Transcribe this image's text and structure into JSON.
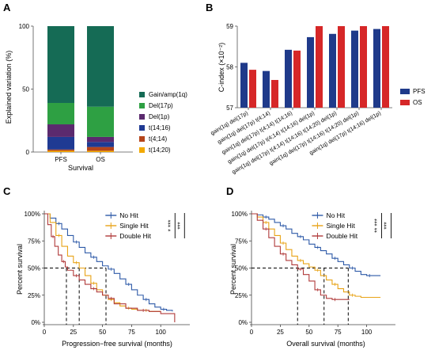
{
  "panels": {
    "A": {
      "label": "A",
      "chart_data": {
        "type": "stacked-bar",
        "categories": [
          "PFS",
          "OS"
        ],
        "ylabel": "Explained variation (%)",
        "xlabel": "Survival",
        "ylim": [
          0,
          100
        ],
        "yticks": [
          0,
          50,
          100
        ],
        "series": [
          {
            "name": "t(14;20)",
            "color": "#F2A900",
            "values": [
              1,
              1
            ]
          },
          {
            "name": "t(4;14)",
            "color": "#B5451B",
            "values": [
              1,
              3
            ]
          },
          {
            "name": "t(14;16)",
            "color": "#1F3A93",
            "values": [
              10,
              4
            ]
          },
          {
            "name": "Del(1p)",
            "color": "#5B2A6E",
            "values": [
              10,
              4
            ]
          },
          {
            "name": "Del(17p)",
            "color": "#2EA043",
            "values": [
              17,
              24
            ]
          },
          {
            "name": "Gain/amp(1q)",
            "color": "#156B55",
            "values": [
              61,
              64
            ]
          }
        ],
        "legend": "right"
      }
    },
    "B": {
      "label": "B",
      "chart_data": {
        "type": "bar",
        "categories": [
          "gain(1q) del(17p)",
          "gain(1q) del(17p) t(4;14)",
          "gain(1q) del(17p) t(4;14) t(14;16)",
          "gain(1q) del(17p) t(4;14) t(14;16) del(1p)",
          "gain(1q) del(17p) t(4;14) t(14;16) t(14;20) del(1p)",
          "gain(1q) del(17p) t(14;16) t(14;20) del(1p)",
          "gain(1q) del(17p) t(14;16) del(1p)"
        ],
        "ylabel": "C-index (×10⁻²)",
        "ylim": [
          57,
          59
        ],
        "yticks": [
          57,
          58,
          59
        ],
        "series": [
          {
            "name": "PFS",
            "color": "#1F3A8A",
            "values": [
              58.1,
              57.9,
              58.42,
              58.73,
              58.81,
              58.89,
              58.93
            ]
          },
          {
            "name": "OS",
            "color": "#D62728",
            "values": [
              57.93,
              57.68,
              58.4,
              59.0,
              59.0,
              59.0,
              59.0
            ]
          }
        ],
        "legend": "right"
      }
    },
    "C": {
      "label": "C",
      "chart_data": {
        "type": "line",
        "xlabel": "Progression−free survival (months)",
        "ylabel": "Percent survival",
        "xlim": [
          0,
          125
        ],
        "ylim": [
          0,
          100
        ],
        "xticks": [
          0,
          25,
          50,
          75,
          100
        ],
        "yticks": [
          "0%",
          "25%",
          "50%",
          "75%",
          "100%"
        ],
        "series": [
          {
            "name": "No Hit",
            "color": "#2E5AA8",
            "x": [
              0,
              5,
              10,
              15,
              20,
              25,
              30,
              35,
              40,
              45,
              50,
              55,
              60,
              65,
              70,
              75,
              80,
              85,
              90,
              95,
              100,
              105,
              110
            ],
            "y": [
              100,
              96,
              91,
              86,
              80,
              74,
              69,
              64,
              60,
              56,
              52,
              49,
              45,
              40,
              35,
              30,
              25,
              21,
              17,
              14,
              12,
              11,
              10
            ]
          },
          {
            "name": "Single Hit",
            "color": "#E8A317",
            "x": [
              0,
              5,
              10,
              15,
              20,
              25,
              30,
              35,
              40,
              45,
              50,
              55,
              60,
              65,
              70,
              75,
              80,
              85,
              90,
              95,
              100
            ],
            "y": [
              100,
              92,
              80,
              70,
              61,
              55,
              50,
              43,
              36,
              30,
              25,
              21,
              18,
              15,
              13,
              12,
              11,
              11,
              10,
              10,
              10
            ]
          },
          {
            "name": "Double Hit",
            "color": "#B03A3A",
            "x": [
              0,
              3,
              6,
              9,
              12,
              15,
              18,
              20,
              25,
              30,
              35,
              40,
              45,
              50,
              55,
              60,
              70,
              80,
              90,
              100,
              112
            ],
            "y": [
              100,
              90,
              79,
              70,
              62,
              56,
              51,
              48,
              43,
              39,
              35,
              31,
              28,
              25,
              22,
              17,
              13,
              11,
              10,
              8,
              0
            ]
          }
        ],
        "medians": [
          19,
          30,
          53
        ],
        "significance": [
          "*",
          "***",
          "***"
        ],
        "legend": "top-right"
      }
    },
    "D": {
      "label": "D",
      "chart_data": {
        "type": "line",
        "xlabel": "Overall survival (months)",
        "ylabel": "Percent survival",
        "xlim": [
          0,
          125
        ],
        "ylim": [
          0,
          100
        ],
        "xticks": [
          0,
          25,
          50,
          75,
          100
        ],
        "yticks": [
          "0%",
          "25%",
          "50%",
          "75%",
          "100%"
        ],
        "series": [
          {
            "name": "No Hit",
            "color": "#2E5AA8",
            "x": [
              0,
              5,
              10,
              15,
              20,
              25,
              30,
              35,
              40,
              45,
              50,
              55,
              60,
              65,
              70,
              75,
              80,
              85,
              90,
              95,
              100,
              105,
              112
            ],
            "y": [
              100,
              99,
              97,
              95,
              92,
              89,
              86,
              82,
              79,
              76,
              72,
              69,
              66,
              63,
              59,
              56,
              53,
              50,
              47,
              44,
              43,
              43,
              43
            ]
          },
          {
            "name": "Single Hit",
            "color": "#E8A317",
            "x": [
              0,
              5,
              10,
              15,
              20,
              25,
              30,
              35,
              40,
              45,
              50,
              55,
              60,
              65,
              70,
              75,
              80,
              85,
              90,
              95,
              112
            ],
            "y": [
              100,
              97,
              92,
              86,
              80,
              73,
              67,
              61,
              57,
              54,
              51,
              48,
              43,
              39,
              35,
              31,
              28,
              25,
              24,
              23,
              23
            ]
          },
          {
            "name": "Double Hit",
            "color": "#B03A3A",
            "x": [
              0,
              5,
              10,
              15,
              20,
              25,
              30,
              35,
              40,
              45,
              50,
              55,
              60,
              65,
              70,
              75,
              80,
              85
            ],
            "y": [
              100,
              94,
              86,
              78,
              70,
              63,
              57,
              53,
              49,
              44,
              38,
              30,
              25,
              22,
              21,
              21,
              21,
              21
            ]
          }
        ],
        "medians": [
          40,
          63,
          84
        ],
        "significance": [
          "**",
          "***",
          "***"
        ],
        "legend": "top-right"
      }
    }
  }
}
